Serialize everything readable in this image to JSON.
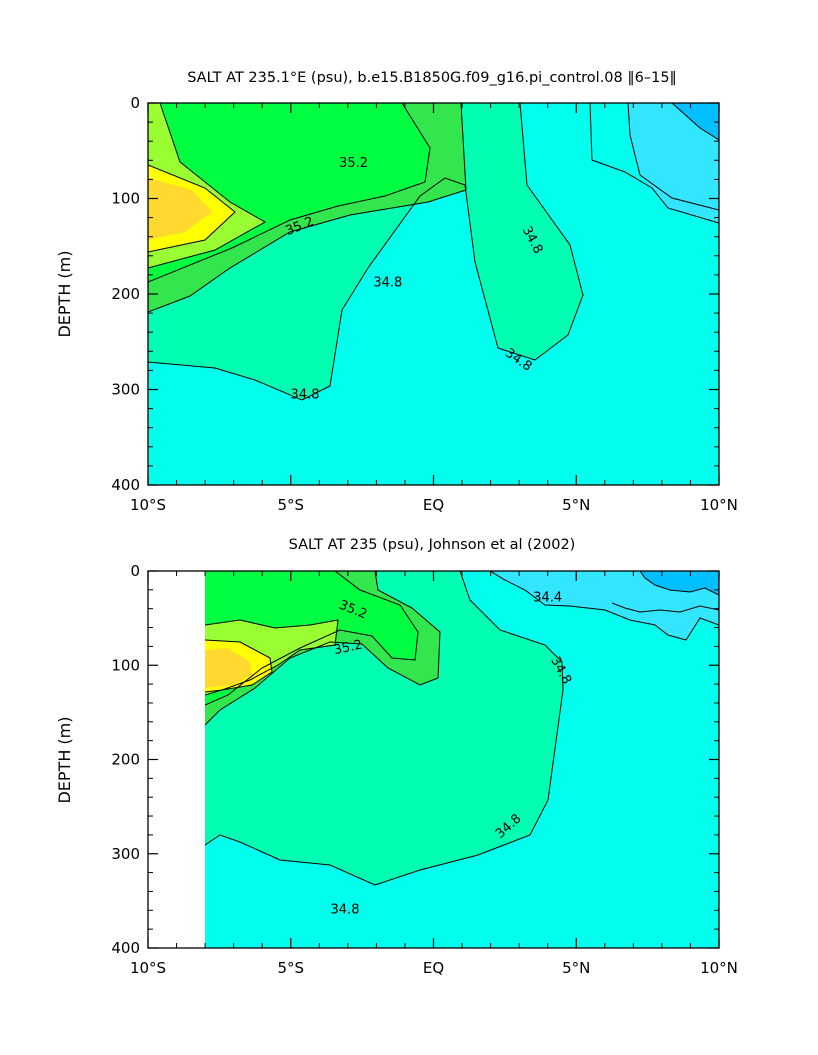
{
  "chart_data": [
    {
      "type": "contour",
      "title": "SALT AT 235.1°E (psu), b.e15.B1850G.f09_g16.pi_control.08 ‖6–15‖",
      "xlabel": "",
      "ylabel": "DEPTH (m)",
      "xlim": [
        -10,
        10
      ],
      "ylim": [
        400,
        0
      ],
      "x_ticks": [
        -10,
        -5,
        0,
        5,
        10
      ],
      "x_tick_labels": [
        "10°S",
        "5°S",
        "EQ",
        "5°N",
        "10°N"
      ],
      "y_ticks": [
        0,
        100,
        200,
        300,
        400
      ],
      "y_tick_labels": [
        "0",
        "100",
        "200",
        "300",
        "400"
      ],
      "data_lon_range": [
        -10,
        10
      ],
      "contour_interval_psu": 0.2,
      "contour_labels": [
        {
          "text": "35.2",
          "lon": -2.8,
          "depth": 62,
          "angle": 0
        },
        {
          "text": "35.2",
          "lon": -4.7,
          "depth": 128,
          "angle": -22
        },
        {
          "text": "34.8",
          "lon": -1.6,
          "depth": 187,
          "angle": 0
        },
        {
          "text": "34.8",
          "lon": 3.5,
          "depth": 143,
          "angle": 62
        },
        {
          "text": "34.8",
          "lon": 3.0,
          "depth": 268,
          "angle": 35
        },
        {
          "text": "34.8",
          "lon": -4.5,
          "depth": 304,
          "angle": 0
        }
      ],
      "fill_colors": {
        "lt_34.4": "#00bfff",
        "34.4_34.6": "#33e6ff",
        "34.6_34.8": "#00ffec",
        "34.8_35.0": "#00ffb3",
        "35.0_35.2": "#33e64d",
        "35.2_35.4": "#00ff40",
        "35.4_35.6": "#99ff33",
        "35.6_35.8": "#ffff00",
        "gt_35.8": "#ffd92e"
      }
    },
    {
      "type": "contour",
      "title": "SALT AT 235 (psu), Johnson et al (2002)",
      "xlabel": "",
      "ylabel": "DEPTH (m)",
      "xlim": [
        -10,
        10
      ],
      "ylim": [
        400,
        0
      ],
      "x_ticks": [
        -10,
        -5,
        0,
        5,
        10
      ],
      "x_tick_labels": [
        "10°S",
        "5°S",
        "EQ",
        "5°N",
        "10°N"
      ],
      "y_ticks": [
        0,
        100,
        200,
        300,
        400
      ],
      "y_tick_labels": [
        "0",
        "100",
        "200",
        "300",
        "400"
      ],
      "data_lon_range": [
        -8,
        10
      ],
      "contour_interval_psu": 0.2,
      "contour_labels": [
        {
          "text": "35.2",
          "lon": -2.8,
          "depth": 40,
          "angle": 22
        },
        {
          "text": "35.2",
          "lon": -3.0,
          "depth": 80,
          "angle": -12
        },
        {
          "text": "34.8",
          "lon": 4.5,
          "depth": 105,
          "angle": 62
        },
        {
          "text": "34.8",
          "lon": 2.6,
          "depth": 270,
          "angle": -42
        },
        {
          "text": "34.8",
          "lon": -3.1,
          "depth": 358,
          "angle": 0
        },
        {
          "text": "34.4",
          "lon": 4.0,
          "depth": 27,
          "angle": 0
        }
      ],
      "fill_colors": {
        "lt_34.2": "#00bfff",
        "34.2_34.4": "#33e6ff",
        "34.4_34.8": "#00ffec",
        "34.8_35.0": "#00ffb3",
        "35.0_35.2": "#33e64d",
        "35.2_35.4": "#00ff40",
        "35.4_35.6": "#99ff33",
        "35.6_35.8": "#ffff00",
        "gt_35.8": "#ffd92e"
      }
    }
  ]
}
